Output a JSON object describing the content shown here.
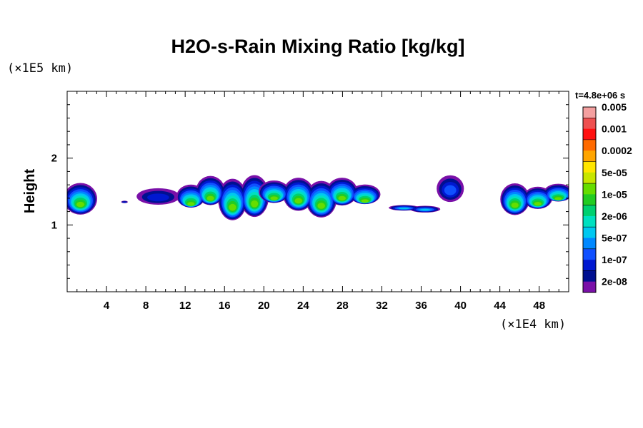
{
  "chart_data": {
    "type": "heatmap",
    "title": "H2O-s-Rain Mixing Ratio [kg/kg]",
    "ylabel": "Height",
    "xlabel": "",
    "x_unit": "(×1E4 km)",
    "y_unit": "(×1E5 km)",
    "time_label": "t=4.8e+06 s",
    "xlim": [
      0,
      51
    ],
    "ylim": [
      0,
      3
    ],
    "x_ticks": [
      4,
      8,
      12,
      16,
      20,
      24,
      28,
      32,
      36,
      40,
      44,
      48
    ],
    "y_ticks": [
      1,
      2
    ],
    "colorbar": {
      "labels": [
        "0.005",
        "0.001",
        "0.0002",
        "5e-05",
        "1e-05",
        "2e-06",
        "5e-07",
        "1e-07",
        "2e-08"
      ],
      "colors_top_to_bottom": [
        "#f4a0a0",
        "#ee5050",
        "#ff1010",
        "#ff6a00",
        "#ffa500",
        "#ffe600",
        "#c8e600",
        "#66dd00",
        "#22cc22",
        "#00d070",
        "#00e0c0",
        "#00c8f0",
        "#0088ff",
        "#1050ff",
        "#0018d0",
        "#001090",
        "#7a10a8"
      ]
    },
    "rain_clusters": [
      {
        "x": [
          0.0,
          2.5
        ],
        "y": [
          1.18,
          1.65
        ],
        "peak_level": "5e-05"
      },
      {
        "x": [
          5.7,
          6.0
        ],
        "y": [
          1.33,
          1.37
        ],
        "peak_level": "1e-07"
      },
      {
        "x": [
          7.5,
          10.8
        ],
        "y": [
          1.3,
          1.67
        ],
        "peak_level": "1e-07"
      },
      {
        "x": [
          11.5,
          20.0
        ],
        "y": [
          1.15,
          1.8
        ],
        "peak_level": "5e-05"
      },
      {
        "x": [
          20.0,
          31.5
        ],
        "y": [
          1.2,
          1.75
        ],
        "peak_level": "5e-05"
      },
      {
        "x": [
          33.0,
          37.5
        ],
        "y": [
          1.2,
          1.3
        ],
        "peak_level": "2e-06"
      },
      {
        "x": [
          38.0,
          40.0
        ],
        "y": [
          1.35,
          1.75
        ],
        "peak_level": "5e-07"
      },
      {
        "x": [
          44.5,
          51.0
        ],
        "y": [
          1.2,
          1.7
        ],
        "peak_level": "5e-05"
      }
    ]
  }
}
